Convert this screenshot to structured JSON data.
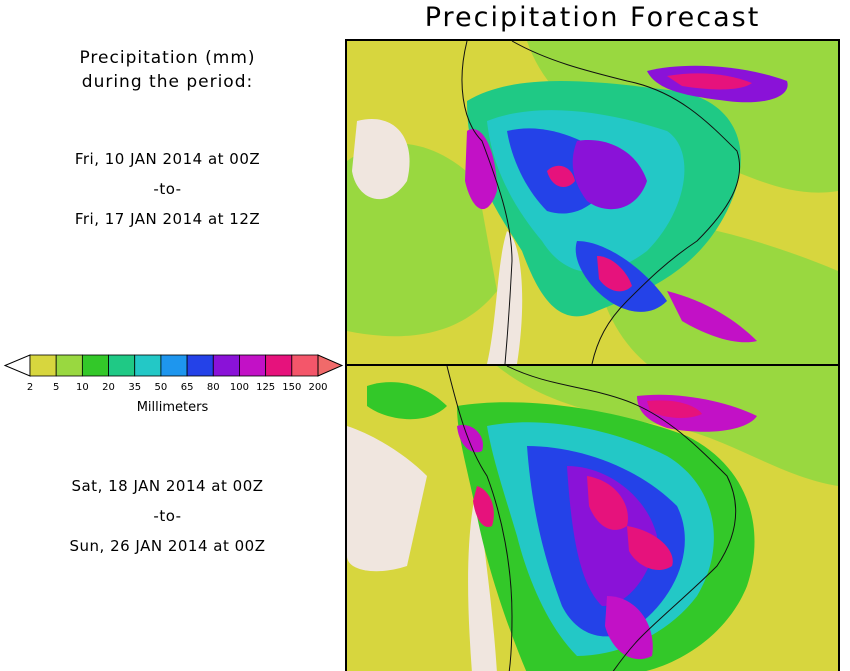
{
  "title": "Precipitation Forecast",
  "subtitle": [
    "Precipitation (mm)",
    "during the period:"
  ],
  "periods": [
    {
      "start": "Fri, 10 JAN 2014 at 00Z",
      "sep": "-to-",
      "end": "Fri, 17 JAN 2014 at 12Z"
    },
    {
      "start": "Sat, 18 JAN 2014 at 00Z",
      "sep": "-to-",
      "end": "Sun, 26 JAN 2014 at 00Z"
    }
  ],
  "legend": {
    "units": "Millimeters",
    "ticks": [
      "2",
      "5",
      "10",
      "20",
      "35",
      "50",
      "65",
      "80",
      "100",
      "125",
      "150",
      "200"
    ],
    "colors": [
      "#d7d63e",
      "#99d840",
      "#33c829",
      "#1fc985",
      "#23c8c6",
      "#1e96ee",
      "#2442e8",
      "#8a12d8",
      "#c211c6",
      "#e6127c",
      "#f4566a"
    ],
    "under_color": "#ffffff",
    "over_color": "#f06a6a"
  },
  "palette": {
    "land": "#f0e6df",
    "yellow": "#d7d63e",
    "lightgreen": "#99d840",
    "green": "#33c829",
    "teal": "#1fc985",
    "cyan": "#23c8c6",
    "blue": "#1e96ee",
    "darkblue": "#2442e8",
    "purple": "#8a12d8",
    "magenta": "#c211c6",
    "pink": "#e6127c",
    "salmon": "#f4566a"
  }
}
